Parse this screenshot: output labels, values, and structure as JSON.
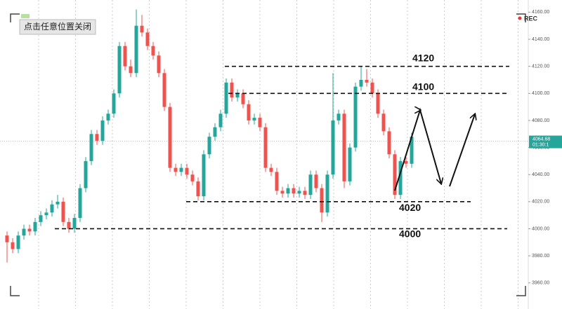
{
  "chart_data": {
    "type": "candlestick",
    "ui": {
      "close_button": "点击任意位置关闭",
      "rec": "REC"
    },
    "up_color": "#26a69a",
    "down_color": "#ef5350",
    "ylim": [
      3949,
      4169
    ],
    "yticks": [
      {
        "value": 4160,
        "label": "4160.00"
      },
      {
        "value": 4140,
        "label": "4140.00"
      },
      {
        "value": 4120,
        "label": "4120.00"
      },
      {
        "value": 4100,
        "label": "4100.00"
      },
      {
        "value": 4080,
        "label": "4080.00"
      },
      {
        "value": 4060,
        "label": "4060.00"
      },
      {
        "value": 4040,
        "label": "4040.00"
      },
      {
        "value": 4020,
        "label": "4020.00"
      },
      {
        "value": 4000,
        "label": "4000.00"
      },
      {
        "value": 3980,
        "label": "3980.00"
      },
      {
        "value": 3960,
        "label": "3960.00"
      }
    ],
    "last_price": 4064.68,
    "countdown": "01:30:1",
    "levels": [
      4120,
      4100,
      4020,
      4000
    ],
    "candles": [
      [
        3995,
        3998,
        3975,
        3990
      ],
      [
        3990,
        3993,
        3982,
        3985
      ],
      [
        3985,
        3998,
        3982,
        3995
      ],
      [
        3995,
        4003,
        3992,
        4000
      ],
      [
        4000,
        4003,
        3995,
        3998
      ],
      [
        3998,
        4008,
        3995,
        4005
      ],
      [
        4005,
        4013,
        4002,
        4010
      ],
      [
        4010,
        4015,
        4007,
        4012
      ],
      [
        4012,
        4021,
        4009,
        4018
      ],
      [
        4018,
        4025,
        4015,
        4020
      ],
      [
        4020,
        4023,
        4002,
        4005
      ],
      [
        4005,
        4008,
        3997,
        4000
      ],
      [
        4000,
        4011,
        3997,
        4008
      ],
      [
        4008,
        4033,
        4005,
        4030
      ],
      [
        4030,
        4053,
        4027,
        4050
      ],
      [
        4050,
        4073,
        4047,
        4070
      ],
      [
        4070,
        4073,
        4062,
        4065
      ],
      [
        4065,
        4083,
        4062,
        4080
      ],
      [
        4080,
        4088,
        4077,
        4085
      ],
      [
        4085,
        4103,
        4082,
        4100
      ],
      [
        4100,
        4138,
        4097,
        4135
      ],
      [
        4135,
        4138,
        4117,
        4120
      ],
      [
        4120,
        4125,
        4112,
        4115
      ],
      [
        4115,
        4162,
        4112,
        4150
      ],
      [
        4150,
        4158,
        4142,
        4145
      ],
      [
        4145,
        4148,
        4132,
        4135
      ],
      [
        4135,
        4138,
        4125,
        4128
      ],
      [
        4128,
        4131,
        4112,
        4115
      ],
      [
        4115,
        4118,
        4087,
        4090
      ],
      [
        4090,
        4093,
        4042,
        4045
      ],
      [
        4045,
        4048,
        4039,
        4042
      ],
      [
        4042,
        4048,
        4039,
        4045
      ],
      [
        4045,
        4048,
        4037,
        4040
      ],
      [
        4040,
        4043,
        4032,
        4035
      ],
      [
        4035,
        4038,
        4021,
        4024
      ],
      [
        4024,
        4058,
        4021,
        4055
      ],
      [
        4055,
        4071,
        4052,
        4068
      ],
      [
        4068,
        4078,
        4065,
        4075
      ],
      [
        4075,
        4088,
        4072,
        4085
      ],
      [
        4085,
        4111,
        4082,
        4108
      ],
      [
        4108,
        4111,
        4094,
        4097
      ],
      [
        4097,
        4103,
        4094,
        4100
      ],
      [
        4100,
        4103,
        4089,
        4092
      ],
      [
        4092,
        4095,
        4077,
        4080
      ],
      [
        4080,
        4085,
        4077,
        4082
      ],
      [
        4082,
        4085,
        4072,
        4075
      ],
      [
        4075,
        4078,
        4042,
        4045
      ],
      [
        4045,
        4048,
        4039,
        4042
      ],
      [
        4042,
        4045,
        4025,
        4028
      ],
      [
        4028,
        4031,
        4023,
        4026
      ],
      [
        4026,
        4033,
        4023,
        4030
      ],
      [
        4030,
        4033,
        4023,
        4026
      ],
      [
        4026,
        4031,
        4023,
        4028
      ],
      [
        4028,
        4031,
        4022,
        4025
      ],
      [
        4025,
        4043,
        4022,
        4040
      ],
      [
        4040,
        4043,
        4027,
        4030
      ],
      [
        4030,
        4033,
        4005,
        4012
      ],
      [
        4012,
        4043,
        4009,
        4040
      ],
      [
        4040,
        4115,
        4037,
        4080
      ],
      [
        4080,
        4088,
        4077,
        4085
      ],
      [
        4085,
        4088,
        4030,
        4035
      ],
      [
        4035,
        4063,
        4032,
        4060
      ],
      [
        4060,
        4108,
        4057,
        4105
      ],
      [
        4105,
        4120,
        4102,
        4110
      ],
      [
        4110,
        4118,
        4105,
        4108
      ],
      [
        4108,
        4111,
        4097,
        4100
      ],
      [
        4100,
        4103,
        4082,
        4085
      ],
      [
        4085,
        4088,
        4069,
        4072
      ],
      [
        4072,
        4075,
        4052,
        4055
      ],
      [
        4055,
        4058,
        4022,
        4025
      ],
      [
        4025,
        4053,
        4022,
        4050
      ],
      [
        4050,
        4053,
        4045,
        4048
      ],
      [
        4048,
        4071,
        4045,
        4068
      ]
    ]
  }
}
